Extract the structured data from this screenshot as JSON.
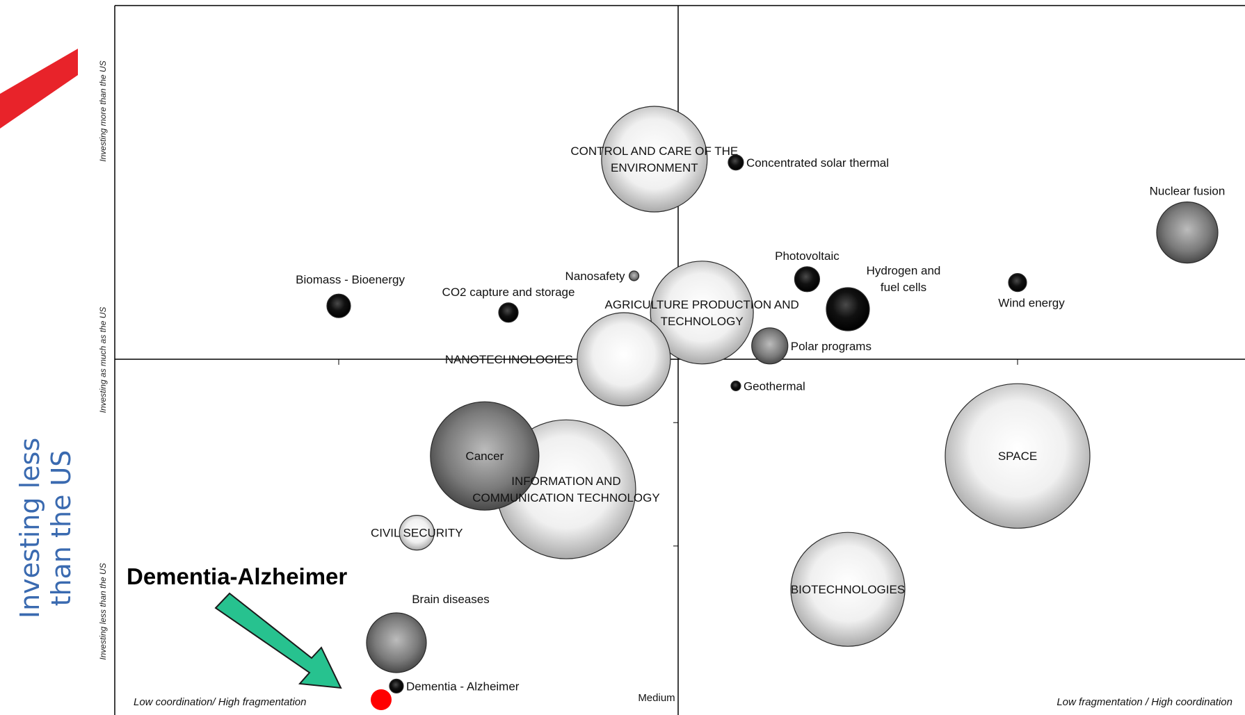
{
  "slide": {
    "side_label_lines": [
      "Investing less",
      "than the US"
    ],
    "side_label_color": "#3a6ab0",
    "highlight_label": "Dementia-Alzheimer",
    "arrow_color": "#27c28f",
    "marker_color": "#ff0000",
    "corner_accent_color": "#e8232a"
  },
  "chart_data": {
    "type": "bubble",
    "x_axis": {
      "left_label": "Low coordination/ High fragmentation",
      "center_label": "Medium",
      "right_label": "Low fragmentation / High coordination",
      "range": [
        -1,
        1
      ]
    },
    "y_axis": {
      "top_label": "Investing more than the US",
      "middle_label": "Investing as much as the US",
      "bottom_label": "Investing less than the US",
      "range": [
        -1,
        1
      ]
    },
    "bubbles": [
      {
        "label": "CONTROL AND CARE OF THE ENVIRONMENT",
        "lines": [
          "CONTROL AND CARE OF THE",
          "ENVIRONMENT"
        ],
        "x": -0.07,
        "y": 0.6,
        "size": 76,
        "shade": "white",
        "label_pos": "center"
      },
      {
        "label": "Concentrated solar thermal",
        "x": 0.17,
        "y": 0.59,
        "size": 11,
        "shade": "black",
        "label_pos": "right"
      },
      {
        "label": "Nuclear fusion",
        "x": 1.5,
        "y": 0.38,
        "size": 44,
        "shade": "gray",
        "label_pos": "top"
      },
      {
        "label": "Photovoltaic",
        "x": 0.38,
        "y": 0.24,
        "size": 18,
        "shade": "black",
        "label_pos": "top"
      },
      {
        "label": "Hydrogen and fuel cells",
        "lines": [
          "Hydrogen and",
          "fuel cells"
        ],
        "x": 0.5,
        "y": 0.15,
        "size": 31,
        "shade": "black",
        "label_pos": "right-up"
      },
      {
        "label": "Wind energy",
        "x": 1.0,
        "y": 0.23,
        "size": 13,
        "shade": "black",
        "label_pos": "bottom"
      },
      {
        "label": "Nanosafety",
        "x": -0.13,
        "y": 0.25,
        "size": 7,
        "shade": "gray",
        "label_pos": "left"
      },
      {
        "label": "Biomass - Bioenergy",
        "x": -1.0,
        "y": 0.16,
        "size": 17,
        "shade": "black",
        "label_pos": "top-left"
      },
      {
        "label": "CO2 capture and storage",
        "x": -0.5,
        "y": 0.14,
        "size": 14,
        "shade": "black",
        "label_pos": "top"
      },
      {
        "label": "NANOTECHNOLOGIES",
        "x": -0.16,
        "y": 0.0,
        "size": 67,
        "shade": "white",
        "label_pos": "left"
      },
      {
        "label": "AGRICULTURE PRODUCTION AND TECHNOLOGY",
        "lines": [
          "AGRICULTURE PRODUCTION AND",
          "TECHNOLOGY"
        ],
        "x": 0.07,
        "y": 0.14,
        "size": 74,
        "shade": "white",
        "label_pos": "center"
      },
      {
        "label": "Polar programs",
        "x": 0.27,
        "y": 0.04,
        "size": 26,
        "shade": "gray",
        "label_pos": "right"
      },
      {
        "label": "Geothermal",
        "x": 0.17,
        "y": -0.08,
        "size": 7,
        "shade": "black",
        "label_pos": "right"
      },
      {
        "label": "SPACE",
        "x": 1.0,
        "y": -0.29,
        "size": 104,
        "shade": "white",
        "label_pos": "center"
      },
      {
        "label": "Cancer",
        "x": -0.57,
        "y": -0.29,
        "size": 78,
        "shade": "gray",
        "label_pos": "center"
      },
      {
        "label": "INFORMATION AND COMMUNICATION TECHNOLOGY",
        "lines": [
          "INFORMATION AND",
          "COMMUNICATION TECHNOLOGY"
        ],
        "x": -0.33,
        "y": -0.39,
        "size": 100,
        "shade": "white",
        "label_pos": "center"
      },
      {
        "label": "CIVIL SECURITY",
        "x": -0.77,
        "y": -0.52,
        "size": 25,
        "shade": "white",
        "label_pos": "center"
      },
      {
        "label": "BIOTECHNOLOGIES",
        "x": 0.5,
        "y": -0.69,
        "size": 82,
        "shade": "white",
        "label_pos": "center"
      },
      {
        "label": "Brain diseases",
        "x": -0.83,
        "y": -0.85,
        "size": 43,
        "shade": "gray",
        "label_pos": "right-up"
      },
      {
        "label": "Dementia - Alzheimer",
        "x": -0.83,
        "y": -0.98,
        "size": 10,
        "shade": "black",
        "label_pos": "right"
      }
    ]
  }
}
